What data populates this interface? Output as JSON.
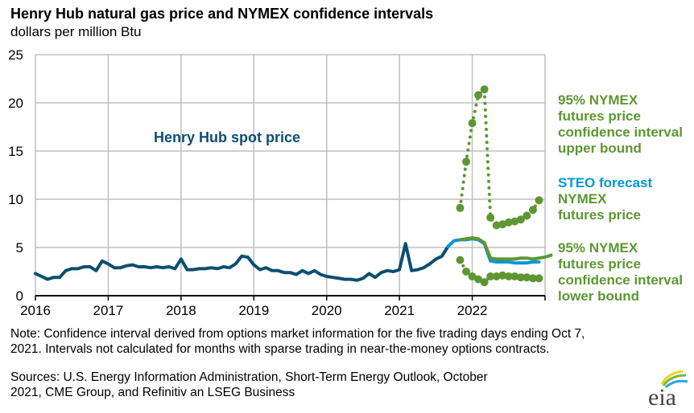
{
  "chart_data": {
    "type": "line",
    "title": "Henry Hub natural gas price and NYMEX confidence intervals",
    "ylabel": "dollars per million  Btu",
    "xlabel": "",
    "ylim": [
      0,
      25
    ],
    "yticks": [
      "0",
      "5",
      "10",
      "15",
      "20",
      "25"
    ],
    "ytick_values": [
      0,
      5,
      10,
      15,
      20,
      25
    ],
    "xlim": [
      2016.0,
      2023.0
    ],
    "xticks": [
      "2016",
      "2017",
      "2018",
      "2019",
      "2020",
      "2021",
      "2022"
    ],
    "xtick_values": [
      2016,
      2017,
      2018,
      2019,
      2020,
      2021,
      2022
    ],
    "grid": true,
    "series": [
      {
        "name": "Henry Hub spot price",
        "label": "Henry Hub spot price",
        "color": "#0b4f71",
        "style": "solid",
        "start": 2016.0,
        "step_months": 1,
        "values": [
          2.3,
          2.0,
          1.7,
          1.9,
          1.9,
          2.6,
          2.8,
          2.8,
          3.0,
          3.0,
          2.6,
          3.6,
          3.3,
          2.9,
          2.9,
          3.1,
          3.2,
          3.0,
          3.0,
          2.9,
          3.0,
          2.9,
          3.0,
          2.8,
          3.8,
          2.7,
          2.7,
          2.8,
          2.8,
          2.9,
          2.8,
          3.0,
          2.9,
          3.3,
          4.1,
          4.0,
          3.2,
          2.7,
          2.9,
          2.6,
          2.6,
          2.4,
          2.4,
          2.2,
          2.6,
          2.3,
          2.6,
          2.2,
          2.0,
          1.9,
          1.8,
          1.7,
          1.7,
          1.6,
          1.8,
          2.3,
          1.9,
          2.4,
          2.6,
          2.5,
          2.7,
          5.4,
          2.6,
          2.7,
          2.9,
          3.3,
          3.8,
          4.1,
          5.1
        ],
        "end_label_month": "2021-09"
      },
      {
        "name": "STEO forecast",
        "label": "STEO forecast",
        "color": "#0096d7",
        "style": "solid",
        "start": 2021.6667,
        "step_months": 1,
        "values": [
          5.1,
          5.7,
          5.8,
          5.8,
          5.9,
          5.8,
          5.4,
          3.6,
          3.5,
          3.5,
          3.5,
          3.4,
          3.4,
          3.4,
          3.5,
          3.5
        ]
      },
      {
        "name": "NYMEX futures price",
        "label": "NYMEX futures price",
        "color": "#5d9732",
        "style": "solid",
        "start": 2021.8333,
        "step_months": 1,
        "values": [
          5.8,
          5.9,
          6.0,
          5.9,
          5.5,
          3.9,
          3.8,
          3.8,
          3.8,
          3.8,
          3.9,
          3.9,
          3.8,
          3.9,
          4.0,
          4.2
        ]
      },
      {
        "name": "95% NYMEX futures price confidence interval upper bound",
        "label": "95% NYMEX futures price confidence interval upper bound",
        "color": "#5d9732",
        "style": "dotted",
        "start": 2021.8333,
        "step_months": 1,
        "values": [
          9.1,
          13.9,
          17.9,
          20.8,
          21.4,
          8.1,
          7.3,
          7.4,
          7.6,
          7.7,
          7.9,
          8.3,
          8.9,
          9.9
        ]
      },
      {
        "name": "95% NYMEX futures price confidence interval lower bound",
        "label": "95% NYMEX futures price confidence interval lower bound",
        "color": "#5d9732",
        "style": "dotted",
        "start": 2021.8333,
        "step_months": 1,
        "values": [
          3.7,
          2.5,
          2.0,
          1.7,
          1.4,
          2.0,
          2.0,
          2.1,
          2.0,
          2.0,
          1.9,
          1.9,
          1.8,
          1.8
        ]
      }
    ],
    "annotations": [
      {
        "text": "Henry Hub spot price",
        "color": "#0b4f71"
      }
    ]
  },
  "header": {
    "title": "Henry Hub natural gas price and NYMEX confidence intervals",
    "subtitle": "dollars per million  Btu"
  },
  "labels": {
    "spot": "Henry Hub spot price",
    "upper": [
      "95% NYMEX",
      "futures price",
      "confidence interval",
      "upper bound"
    ],
    "steo": "STEO forecast",
    "nymex": [
      "NYMEX",
      "futures price"
    ],
    "lower": [
      "95% NYMEX",
      "futures price",
      "confidence interval",
      "lower bound"
    ]
  },
  "colors": {
    "spot": "#0b4f71",
    "steo": "#0096d7",
    "nymex": "#5d9732",
    "grid": "#bfbfbf",
    "axis": "#000000"
  },
  "footer": {
    "note_line1": "Note: Confidence interval derived from options market information for the five trading days ending Oct 7,",
    "note_line2": "2021. Intervals not calculated for months with sparse trading in near-the-money options contracts.",
    "sources_line1": "Sources: U.S. Energy Information Administration, Short-Term Energy Outlook, October",
    "sources_line2": "2021, CME Group, and Refinitiv an LSEG Business",
    "logo_text": "eia"
  }
}
